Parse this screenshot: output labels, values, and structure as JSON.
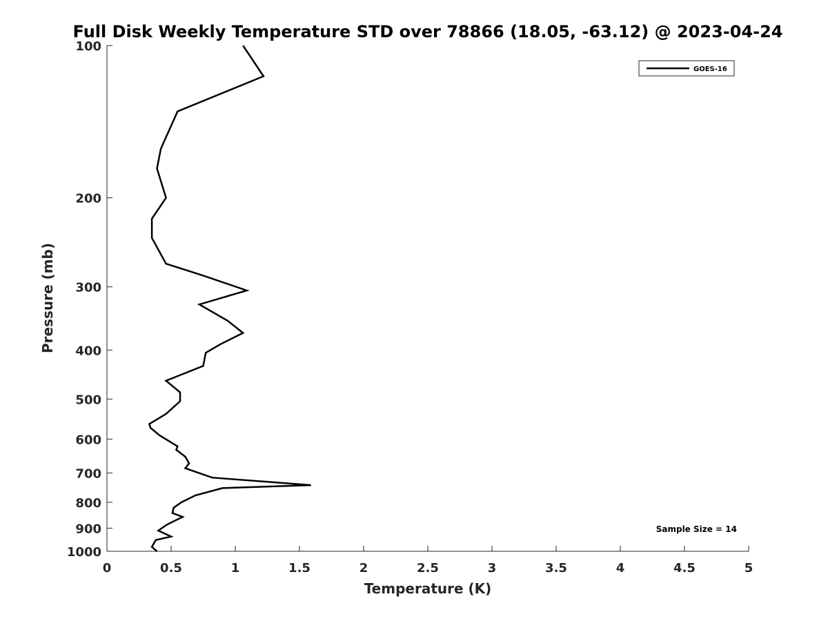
{
  "chart_data": {
    "type": "line",
    "title": "Full Disk Weekly Temperature STD over 78866 (18.05, -63.12) @ 2023-04-24",
    "xlabel": "Temperature (K)",
    "ylabel": "Pressure (mb)",
    "xlim": [
      0,
      5
    ],
    "ylim": [
      1000,
      100
    ],
    "y_scale": "log",
    "y_reversed": true,
    "grid": false,
    "legend_placement": "top-right",
    "x_ticks": [
      "0",
      "0.5",
      "1",
      "1.5",
      "2",
      "2.5",
      "3",
      "3.5",
      "4",
      "4.5",
      "5"
    ],
    "y_ticks": [
      "100",
      "200",
      "300",
      "400",
      "500",
      "600",
      "700",
      "800",
      "900",
      "1000"
    ],
    "series": [
      {
        "name": "GOES-16",
        "color": "#000000",
        "x": [
          1.06,
          1.22,
          0.55,
          0.42,
          0.39,
          0.46,
          0.35,
          0.35,
          0.46,
          0.75,
          1.09,
          0.72,
          0.94,
          1.06,
          0.88,
          0.77,
          0.75,
          0.46,
          0.46,
          0.57,
          0.57,
          0.46,
          0.33,
          0.34,
          0.41,
          0.55,
          0.54,
          0.61,
          0.64,
          0.61,
          0.82,
          1.59,
          0.9,
          0.69,
          0.58,
          0.52,
          0.51,
          0.59,
          0.47,
          0.4,
          0.5,
          0.38,
          0.35,
          0.39
        ],
        "y": [
          100,
          115,
          135,
          160,
          175,
          200,
          220,
          240,
          270,
          285,
          305,
          325,
          350,
          370,
          390,
          405,
          430,
          460,
          460,
          485,
          505,
          535,
          560,
          570,
          590,
          620,
          630,
          650,
          670,
          685,
          715,
          740,
          750,
          775,
          800,
          820,
          840,
          855,
          885,
          910,
          935,
          950,
          980,
          1000
        ]
      }
    ],
    "annotations": [
      "Sample Size = 14"
    ]
  }
}
